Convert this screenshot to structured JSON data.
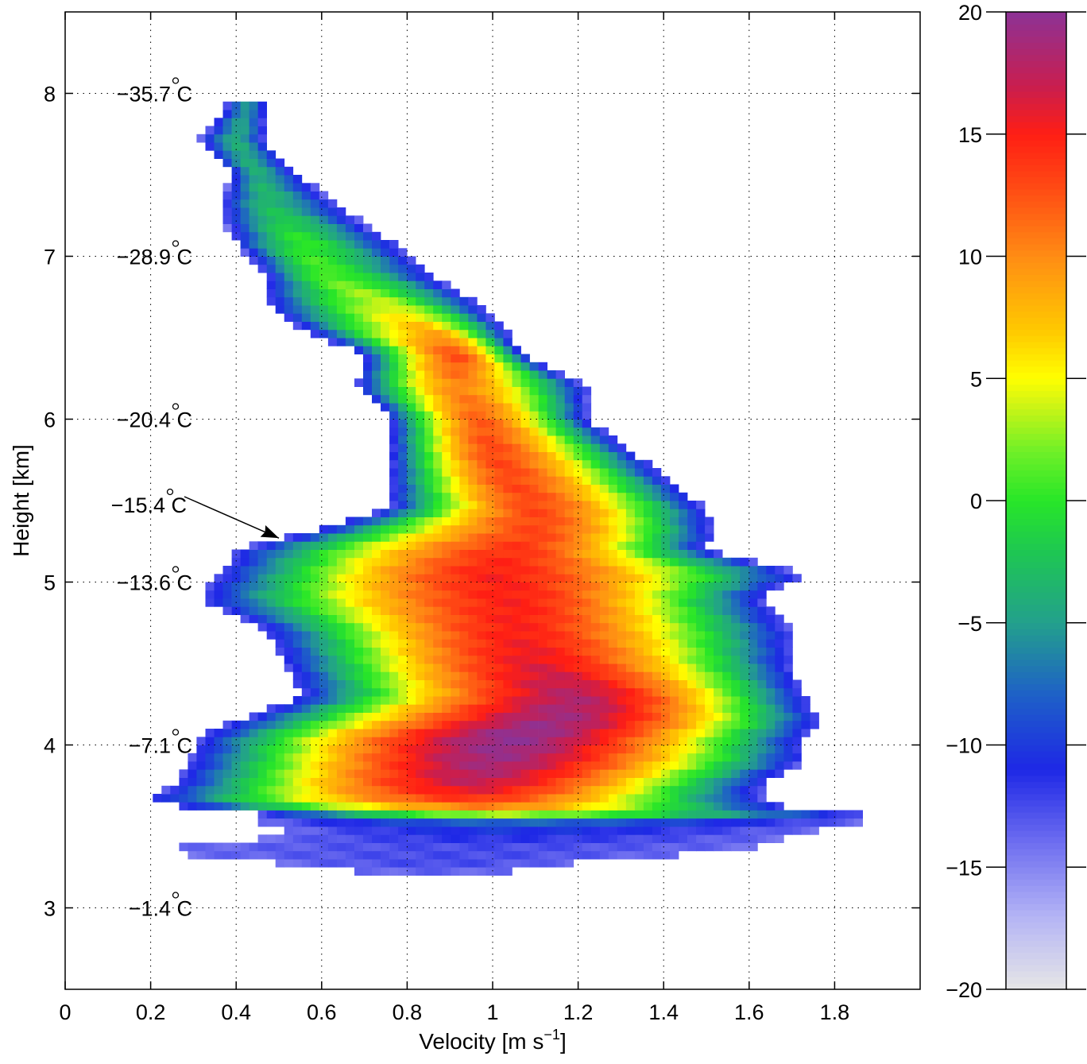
{
  "chart_data": {
    "type": "heatmap",
    "xlabel": "Velocity [m s",
    "xlabel_sup": "−1",
    "xlabel_tail": "]",
    "ylabel": "Height [km]",
    "xlim": [
      0,
      2.0
    ],
    "ylim": [
      2.5,
      8.5
    ],
    "x_ticks": [
      0,
      0.2,
      0.4,
      0.6,
      0.8,
      1.0,
      1.2,
      1.4,
      1.6,
      1.8
    ],
    "x_tick_labels": [
      "0",
      "0.2",
      "0.4",
      "0.6",
      "0.8",
      "1",
      "1.2",
      "1.4",
      "1.6",
      "1.8"
    ],
    "y_ticks": [
      3,
      4,
      5,
      6,
      7,
      8
    ],
    "y_tick_labels": [
      "3",
      "4",
      "5",
      "6",
      "7",
      "8"
    ],
    "grid": true,
    "colorbar": {
      "range": [
        -20,
        20
      ],
      "ticks": [
        20,
        15,
        10,
        5,
        0,
        -5,
        -10,
        -15,
        -20
      ],
      "tick_labels": [
        "20",
        "15",
        "10",
        "5",
        "0",
        "−5",
        "−10",
        "−15",
        "−20"
      ],
      "colors": [
        {
          "v": -20,
          "c": "#e6e6e6"
        },
        {
          "v": -17,
          "c": "#b4b4f5"
        },
        {
          "v": -14,
          "c": "#6e6ef0"
        },
        {
          "v": -11,
          "c": "#1e28e6"
        },
        {
          "v": -8,
          "c": "#1e5fc8"
        },
        {
          "v": -5,
          "c": "#23a08c"
        },
        {
          "v": -2,
          "c": "#1ec850"
        },
        {
          "v": 0,
          "c": "#28e628"
        },
        {
          "v": 2,
          "c": "#6ef028"
        },
        {
          "v": 4,
          "c": "#d2f514"
        },
        {
          "v": 5,
          "c": "#ffff00"
        },
        {
          "v": 7,
          "c": "#ffc800"
        },
        {
          "v": 10,
          "c": "#ff8c14"
        },
        {
          "v": 13,
          "c": "#ff4614"
        },
        {
          "v": 15,
          "c": "#ff1e14"
        },
        {
          "v": 17,
          "c": "#c81e50"
        },
        {
          "v": 20,
          "c": "#8c3296"
        }
      ]
    },
    "temperature_labels": [
      {
        "height": 8.0,
        "text": "−35.7",
        "unit": "C"
      },
      {
        "height": 7.0,
        "text": "−28.9",
        "unit": "C"
      },
      {
        "height": 6.0,
        "text": "−20.4",
        "unit": "C"
      },
      {
        "height": 5.0,
        "text": "−13.6",
        "unit": "C"
      },
      {
        "height": 4.0,
        "text": "−7.1",
        "unit": "C"
      },
      {
        "height": 3.0,
        "text": "−1.4",
        "unit": "C"
      }
    ],
    "annotation": {
      "text": "−15.4",
      "unit": "C",
      "arrow_to": {
        "x": 0.5,
        "y": 5.27
      }
    },
    "profile": [
      {
        "h": 3.2,
        "l": 0.76,
        "r": 0.97,
        "peak": -14,
        "pc": 0.85
      },
      {
        "h": 3.3,
        "l": 0.4,
        "r": 1.27,
        "peak": -12,
        "pc": 0.9
      },
      {
        "h": 3.35,
        "l": 0.18,
        "r": 1.6,
        "peak": -13,
        "pc": 0.95
      },
      {
        "h": 3.45,
        "l": 0.55,
        "r": 1.7,
        "peak": -11,
        "pc": 1.0
      },
      {
        "h": 3.52,
        "l": 0.43,
        "r": 1.85,
        "peak": -9,
        "pc": 1.05
      },
      {
        "h": 3.55,
        "l": 0.55,
        "r": 2.0,
        "peak": -2,
        "pc": 1.0
      },
      {
        "h": 3.6,
        "l": 0.35,
        "r": 1.73,
        "peak": 8,
        "pc": 1.0
      },
      {
        "h": 3.65,
        "l": 0.18,
        "r": 1.63,
        "peak": 13,
        "pc": 0.95
      },
      {
        "h": 3.75,
        "l": 0.25,
        "r": 1.63,
        "peak": 17,
        "pc": 0.95
      },
      {
        "h": 3.9,
        "l": 0.29,
        "r": 1.73,
        "peak": 19,
        "pc": 1.0
      },
      {
        "h": 4.05,
        "l": 0.31,
        "r": 1.73,
        "peak": 20,
        "pc": 1.05
      },
      {
        "h": 4.15,
        "l": 0.4,
        "r": 1.77,
        "peak": 19,
        "pc": 1.15
      },
      {
        "h": 4.3,
        "l": 0.55,
        "r": 1.73,
        "peak": 18,
        "pc": 1.2
      },
      {
        "h": 4.5,
        "l": 0.51,
        "r": 1.7,
        "peak": 16,
        "pc": 1.1
      },
      {
        "h": 4.7,
        "l": 0.47,
        "r": 1.7,
        "peak": 15,
        "pc": 1.05
      },
      {
        "h": 4.9,
        "l": 0.31,
        "r": 1.63,
        "peak": 15,
        "pc": 1.05
      },
      {
        "h": 5.05,
        "l": 0.36,
        "r": 1.73,
        "peak": 15,
        "pc": 1.0
      },
      {
        "h": 5.2,
        "l": 0.4,
        "r": 1.5,
        "peak": 14,
        "pc": 1.05
      },
      {
        "h": 5.3,
        "l": 0.55,
        "r": 1.52,
        "peak": 13,
        "pc": 1.1
      },
      {
        "h": 5.45,
        "l": 0.76,
        "r": 1.5,
        "peak": 13,
        "pc": 1.1
      },
      {
        "h": 5.6,
        "l": 0.76,
        "r": 1.43,
        "peak": 13,
        "pc": 1.05
      },
      {
        "h": 5.8,
        "l": 0.76,
        "r": 1.33,
        "peak": 13,
        "pc": 1.0
      },
      {
        "h": 6.0,
        "l": 0.76,
        "r": 1.22,
        "peak": 12,
        "pc": 0.97
      },
      {
        "h": 6.2,
        "l": 0.68,
        "r": 1.22,
        "peak": 10,
        "pc": 0.92
      },
      {
        "h": 6.4,
        "l": 0.7,
        "r": 1.07,
        "peak": 13,
        "pc": 0.92
      },
      {
        "h": 6.55,
        "l": 0.55,
        "r": 1.03,
        "peak": 8,
        "pc": 0.85
      },
      {
        "h": 6.7,
        "l": 0.47,
        "r": 0.97,
        "peak": 4,
        "pc": 0.75
      },
      {
        "h": 6.9,
        "l": 0.47,
        "r": 0.85,
        "peak": 1,
        "pc": 0.6
      },
      {
        "h": 7.1,
        "l": 0.39,
        "r": 0.76,
        "peak": 0,
        "pc": 0.55
      },
      {
        "h": 7.3,
        "l": 0.36,
        "r": 0.65,
        "peak": -3,
        "pc": 0.48
      },
      {
        "h": 7.5,
        "l": 0.39,
        "r": 0.55,
        "peak": -4,
        "pc": 0.45
      },
      {
        "h": 7.7,
        "l": 0.31,
        "r": 0.47,
        "peak": -4,
        "pc": 0.4
      },
      {
        "h": 7.97,
        "l": 0.39,
        "r": 0.47,
        "peak": -6,
        "pc": 0.43
      }
    ]
  }
}
